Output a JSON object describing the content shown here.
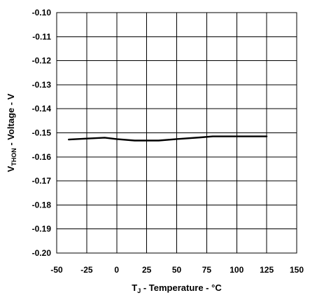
{
  "chart_data": {
    "type": "line",
    "title": "",
    "xlabel": {
      "main": "T",
      "sub": "J",
      "rest": " - Temperature - °C"
    },
    "ylabel": {
      "main": "V",
      "sub": "THON",
      "rest": " - Voltage - V"
    },
    "xlim": [
      -50,
      150
    ],
    "ylim": [
      -0.2,
      -0.1
    ],
    "x_ticks": [
      -50,
      -25,
      0,
      25,
      50,
      75,
      100,
      125,
      150
    ],
    "x_tick_labels": [
      "-50",
      "-25",
      "0",
      "25",
      "50",
      "75",
      "100",
      "125",
      "150"
    ],
    "y_ticks": [
      -0.1,
      -0.11,
      -0.12,
      -0.13,
      -0.14,
      -0.15,
      -0.16,
      -0.17,
      -0.18,
      -0.19,
      -0.2
    ],
    "y_tick_labels": [
      "-0.10",
      "-0.11",
      "-0.12",
      "-0.13",
      "-0.14",
      "-0.15",
      "-0.16",
      "-0.17",
      "-0.18",
      "-0.19",
      "-0.20"
    ],
    "grid": true,
    "legend": "none",
    "series": [
      {
        "x": [
          -40,
          -25,
          -10,
          0,
          15,
          25,
          35,
          50,
          70,
          80,
          100,
          125
        ],
        "y": [
          -0.1528,
          -0.1524,
          -0.152,
          -0.1526,
          -0.1532,
          -0.1532,
          -0.1532,
          -0.1526,
          -0.1519,
          -0.1515,
          -0.1515,
          -0.1515
        ]
      }
    ]
  }
}
